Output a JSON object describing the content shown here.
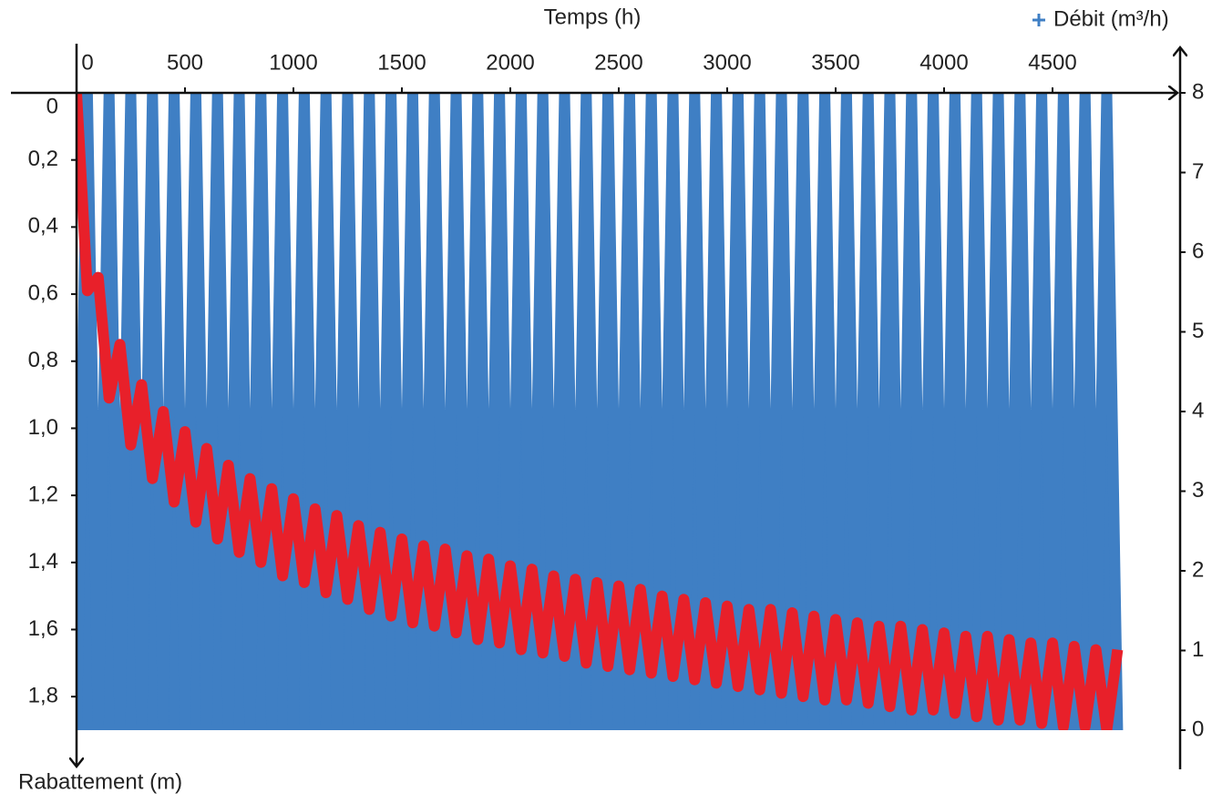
{
  "chart_data": {
    "type": "area-line",
    "x_label": "Temps (h)",
    "y_label": "Rabattement (m)",
    "x": [
      0,
      50,
      100,
      150,
      200,
      250,
      300,
      350,
      400,
      450,
      500,
      550,
      600,
      650,
      700,
      750,
      800,
      850,
      900,
      950,
      1000,
      1050,
      1100,
      1150,
      1200,
      1250,
      1300,
      1350,
      1400,
      1450,
      1500,
      1550,
      1600,
      1650,
      1700,
      1750,
      1800,
      1850,
      1900,
      1950,
      2000,
      2050,
      2100,
      2150,
      2200,
      2250,
      2300,
      2350,
      2400,
      2450,
      2500,
      2550,
      2600,
      2650,
      2700,
      2750,
      2800,
      2850,
      2900,
      2950,
      3000,
      3050,
      3100,
      3150,
      3200,
      3250,
      3300,
      3350,
      3400,
      3450,
      3500,
      3550,
      3600,
      3650,
      3700,
      3750,
      3800,
      3850,
      3900,
      3950,
      4000,
      4050,
      4100,
      4150,
      4200,
      4250,
      4300,
      4350,
      4400,
      4450,
      4500,
      4550,
      4600,
      4650,
      4700,
      4750,
      4800
    ],
    "series": [
      {
        "name": "Débit (m³/h)",
        "color": "#3f7fc4",
        "axis": "y2",
        "values": [
          0,
          8,
          0,
          8,
          0,
          8,
          0,
          8,
          0,
          8,
          0,
          8,
          0,
          8,
          0,
          8,
          0,
          8,
          0,
          8,
          0,
          8,
          0,
          8,
          0,
          8,
          0,
          8,
          0,
          8,
          0,
          8,
          0,
          8,
          0,
          8,
          0,
          8,
          0,
          8,
          0,
          8,
          0,
          8,
          0,
          8,
          0,
          8,
          0,
          8,
          0,
          8,
          0,
          8,
          0,
          8,
          0,
          8,
          0,
          8,
          0,
          8,
          0,
          8,
          0,
          8,
          0,
          8,
          0,
          8,
          0,
          8,
          0,
          8,
          0,
          8,
          0,
          8,
          0,
          8,
          0,
          8,
          0,
          8,
          0,
          8,
          0,
          8,
          0,
          8,
          0,
          8,
          0,
          8,
          0,
          8,
          0
        ]
      },
      {
        "color": "#e8202a",
        "axis": "y",
        "values": [
          0,
          0.59,
          0.55,
          0.91,
          0.75,
          1.05,
          0.87,
          1.15,
          0.95,
          1.22,
          1.01,
          1.28,
          1.06,
          1.33,
          1.11,
          1.37,
          1.15,
          1.4,
          1.18,
          1.44,
          1.21,
          1.46,
          1.24,
          1.49,
          1.26,
          1.51,
          1.29,
          1.54,
          1.31,
          1.56,
          1.33,
          1.58,
          1.35,
          1.59,
          1.36,
          1.61,
          1.38,
          1.63,
          1.39,
          1.64,
          1.41,
          1.66,
          1.42,
          1.67,
          1.44,
          1.68,
          1.45,
          1.7,
          1.46,
          1.71,
          1.47,
          1.72,
          1.48,
          1.73,
          1.5,
          1.74,
          1.51,
          1.75,
          1.52,
          1.76,
          1.53,
          1.77,
          1.54,
          1.78,
          1.54,
          1.79,
          1.55,
          1.8,
          1.56,
          1.81,
          1.57,
          1.81,
          1.58,
          1.82,
          1.59,
          1.83,
          1.59,
          1.84,
          1.6,
          1.84,
          1.61,
          1.85,
          1.62,
          1.86,
          1.62,
          1.87,
          1.63,
          1.87,
          1.64,
          1.88,
          1.64,
          1.89,
          1.65,
          1.89,
          1.66,
          1.9,
          1.66
        ]
      }
    ],
    "xlim": [
      0,
      5000
    ],
    "xticks": [
      0,
      500,
      1000,
      1500,
      2000,
      2500,
      3000,
      3500,
      4000,
      4500
    ],
    "ylim": [
      0,
      1.9
    ],
    "y_inverted": true,
    "yticks": [
      0,
      {
        "value": 0.2,
        "label": "0,2"
      },
      {
        "value": 0.4,
        "label": "0,4"
      },
      {
        "value": 0.6,
        "label": "0,6"
      },
      {
        "value": 0.8,
        "label": "0,8"
      },
      {
        "value": 1,
        "label": "1,0"
      },
      {
        "value": 1.2,
        "label": "1,2"
      },
      {
        "value": 1.4,
        "label": "1,4"
      },
      {
        "value": 1.6,
        "label": "1,6"
      },
      {
        "value": 1.8,
        "label": "1,8"
      }
    ],
    "y2lim": [
      0,
      8
    ],
    "y2ticks": [
      0,
      1,
      2,
      3,
      4,
      5,
      6,
      7,
      8
    ],
    "legend": "top-right"
  }
}
